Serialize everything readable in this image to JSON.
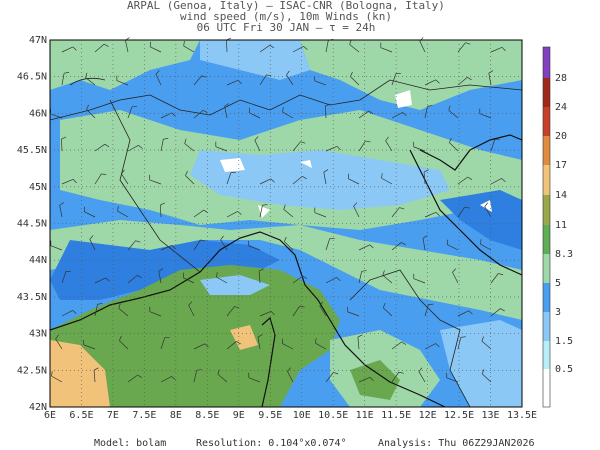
{
  "header": {
    "line1": "ARPAL (Genoa, Italy)  –  ISAC-CNR (Bologna, Italy)",
    "line2": "wind speed (m/s), 10m Winds (kn)",
    "line3": "06 UTC Fri 30 JAN  –  τ = 24h"
  },
  "map": {
    "lat_labels": [
      "47N",
      "46.5N",
      "46N",
      "45.5N",
      "45N",
      "44.5N",
      "44N",
      "43.5N",
      "43N",
      "42.5N",
      "42N"
    ],
    "lon_labels": [
      "6E",
      "6.5E",
      "7E",
      "7.5E",
      "8E",
      "8.5E",
      "9E",
      "9.5E",
      "10E",
      "10.5E",
      "11E",
      "11.5E",
      "12E",
      "12.5E",
      "13E",
      "13.5E"
    ]
  },
  "colorbar": {
    "labels": [
      0.5,
      1.5,
      3,
      5,
      8.3,
      11,
      14,
      17,
      20,
      24,
      28
    ],
    "colors": [
      "#ffffff",
      "#b8eefa",
      "#8cc8f5",
      "#4a9ef0",
      "#9ed8a8",
      "#5fae55",
      "#9aa84a",
      "#f0c27a",
      "#e08a40",
      "#c8402a",
      "#a02818",
      "#8040c0"
    ]
  },
  "footer": {
    "model": "Model: bolam",
    "resolution": "Resolution: 0.104°x0.074°",
    "analysis": "Analysis: Thu 06Z29JAN2026"
  }
}
